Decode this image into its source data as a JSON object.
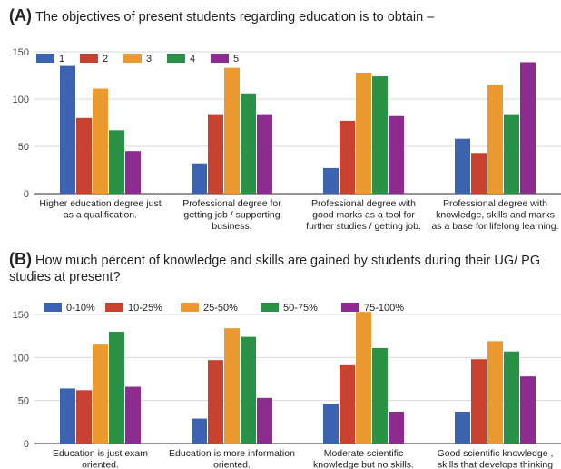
{
  "chart_data": [
    {
      "type": "bar",
      "panel_label": "(A)",
      "title": "The objectives of present students regarding education is to obtain –",
      "categories": [
        [
          "Higher education degree just",
          "as a qualification."
        ],
        [
          "Professional degree for",
          "getting job / supporting",
          "business."
        ],
        [
          "Professional degree with",
          "good marks as a tool for",
          "further studies / getting job."
        ],
        [
          "Professional degree with",
          "knowledge, skills and marks",
          "as a base for lifelong learning."
        ]
      ],
      "series": [
        {
          "name": "1",
          "color": "#3b63b0",
          "values": [
            135,
            32,
            27,
            58
          ]
        },
        {
          "name": "2",
          "color": "#c8422f",
          "values": [
            80,
            84,
            77,
            43
          ]
        },
        {
          "name": "3",
          "color": "#ec9a2f",
          "values": [
            111,
            133,
            128,
            115
          ]
        },
        {
          "name": "4",
          "color": "#2a9247",
          "values": [
            67,
            106,
            124,
            84
          ]
        },
        {
          "name": "5",
          "color": "#8b2c8e",
          "values": [
            45,
            84,
            82,
            139
          ]
        }
      ],
      "ylim": [
        0,
        150
      ],
      "yticks": [
        0,
        50,
        100,
        150
      ],
      "legend": "top-left",
      "grid": true
    },
    {
      "type": "bar",
      "panel_label": "(B)",
      "title": "How much percent of knowledge and skills are gained by students during their UG/ PG studies at present?",
      "categories": [
        [
          "Education is just exam",
          "oriented."
        ],
        [
          "Education is more information",
          "oriented."
        ],
        [
          "Moderate scientific",
          "knowledge but no skills."
        ],
        [
          "Good scientific knowledge ,",
          "skills that develops thinking"
        ]
      ],
      "series": [
        {
          "name": "0-10%",
          "color": "#3b63b0",
          "values": [
            64,
            29,
            46,
            37
          ]
        },
        {
          "name": "10-25%",
          "color": "#c8422f",
          "values": [
            62,
            97,
            91,
            98
          ]
        },
        {
          "name": "25-50%",
          "color": "#ec9a2f",
          "values": [
            115,
            134,
            153,
            119
          ]
        },
        {
          "name": "50-75%",
          "color": "#2a9247",
          "values": [
            130,
            124,
            111,
            107
          ]
        },
        {
          "name": "75-100%",
          "color": "#8b2c8e",
          "values": [
            66,
            53,
            37,
            78
          ]
        }
      ],
      "ylim": [
        0,
        150
      ],
      "yticks": [
        0,
        50,
        100,
        150
      ],
      "legend": "top-left",
      "grid": true
    }
  ]
}
